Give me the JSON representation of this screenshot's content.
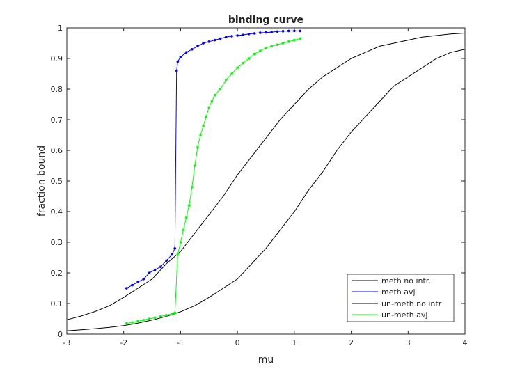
{
  "chart_data": {
    "type": "line",
    "title": "binding curve",
    "xlabel": "mu",
    "ylabel": "fraction bound",
    "xlim": [
      -3,
      4
    ],
    "ylim": [
      0,
      1
    ],
    "xticks": [
      -3,
      -2,
      -1,
      0,
      1,
      2,
      3,
      4
    ],
    "yticks": [
      0,
      0.1,
      0.2,
      0.3,
      0.4,
      0.5,
      0.6,
      0.7,
      0.8,
      0.9,
      1
    ],
    "grid": false,
    "legend_position": "bottom-right",
    "series": [
      {
        "name": "meth no intr.",
        "color": "#000000",
        "style": "line",
        "x": [
          -3,
          -2.75,
          -2.5,
          -2.25,
          -2,
          -1.75,
          -1.5,
          -1.25,
          -1,
          -0.75,
          -0.5,
          -0.25,
          0,
          0.25,
          0.5,
          0.75,
          1,
          1.25,
          1.5,
          1.75,
          2,
          2.25,
          2.5,
          2.75,
          3,
          3.25,
          3.5,
          3.75,
          4
        ],
        "y": [
          0.047,
          0.059,
          0.074,
          0.093,
          0.12,
          0.15,
          0.18,
          0.23,
          0.27,
          0.33,
          0.39,
          0.45,
          0.52,
          0.58,
          0.64,
          0.7,
          0.75,
          0.8,
          0.84,
          0.87,
          0.9,
          0.92,
          0.94,
          0.95,
          0.96,
          0.97,
          0.975,
          0.98,
          0.983
        ]
      },
      {
        "name": "meth avj",
        "color": "#0000ff",
        "style": "line+markers",
        "x": [
          -1.95,
          -1.85,
          -1.75,
          -1.65,
          -1.55,
          -1.45,
          -1.35,
          -1.25,
          -1.15,
          -1.1,
          -1.07,
          -1.05,
          -1.0,
          -0.9,
          -0.8,
          -0.7,
          -0.6,
          -0.5,
          -0.4,
          -0.3,
          -0.2,
          -0.1,
          0,
          0.1,
          0.2,
          0.3,
          0.4,
          0.5,
          0.6,
          0.7,
          0.8,
          0.9,
          1.0,
          1.1
        ],
        "y": [
          0.15,
          0.16,
          0.17,
          0.18,
          0.2,
          0.21,
          0.22,
          0.24,
          0.26,
          0.28,
          0.86,
          0.89,
          0.905,
          0.92,
          0.93,
          0.94,
          0.95,
          0.955,
          0.96,
          0.965,
          0.97,
          0.973,
          0.975,
          0.977,
          0.98,
          0.982,
          0.984,
          0.985,
          0.986,
          0.988,
          0.989,
          0.99,
          0.99,
          0.99
        ]
      },
      {
        "name": "un-meth no intr",
        "color": "#000000",
        "style": "line",
        "x": [
          -3,
          -2.75,
          -2.5,
          -2.25,
          -2,
          -1.75,
          -1.5,
          -1.25,
          -1,
          -0.75,
          -0.5,
          -0.25,
          0,
          0.25,
          0.5,
          0.75,
          1,
          1.25,
          1.5,
          1.75,
          2,
          2.25,
          2.5,
          2.75,
          3,
          3.25,
          3.5,
          3.75,
          4
        ],
        "y": [
          0.011,
          0.014,
          0.018,
          0.022,
          0.028,
          0.036,
          0.046,
          0.058,
          0.073,
          0.093,
          0.12,
          0.15,
          0.18,
          0.23,
          0.28,
          0.34,
          0.4,
          0.47,
          0.53,
          0.6,
          0.66,
          0.71,
          0.76,
          0.81,
          0.84,
          0.87,
          0.9,
          0.92,
          0.93
        ]
      },
      {
        "name": "un-meth avj",
        "color": "#00ff00",
        "style": "line+markers",
        "x": [
          -1.95,
          -1.85,
          -1.75,
          -1.65,
          -1.55,
          -1.45,
          -1.35,
          -1.25,
          -1.15,
          -1.1,
          -1.05,
          -1.0,
          -0.95,
          -0.9,
          -0.85,
          -0.8,
          -0.75,
          -0.7,
          -0.65,
          -0.6,
          -0.55,
          -0.5,
          -0.45,
          -0.4,
          -0.3,
          -0.2,
          -0.1,
          0,
          0.1,
          0.2,
          0.3,
          0.4,
          0.5,
          0.6,
          0.7,
          0.8,
          0.9,
          1.0,
          1.1
        ],
        "y": [
          0.035,
          0.038,
          0.042,
          0.046,
          0.05,
          0.054,
          0.058,
          0.062,
          0.066,
          0.07,
          0.26,
          0.3,
          0.34,
          0.38,
          0.42,
          0.48,
          0.55,
          0.61,
          0.65,
          0.68,
          0.71,
          0.74,
          0.76,
          0.78,
          0.8,
          0.83,
          0.85,
          0.87,
          0.885,
          0.9,
          0.915,
          0.925,
          0.935,
          0.94,
          0.945,
          0.95,
          0.955,
          0.96,
          0.965
        ]
      }
    ]
  }
}
